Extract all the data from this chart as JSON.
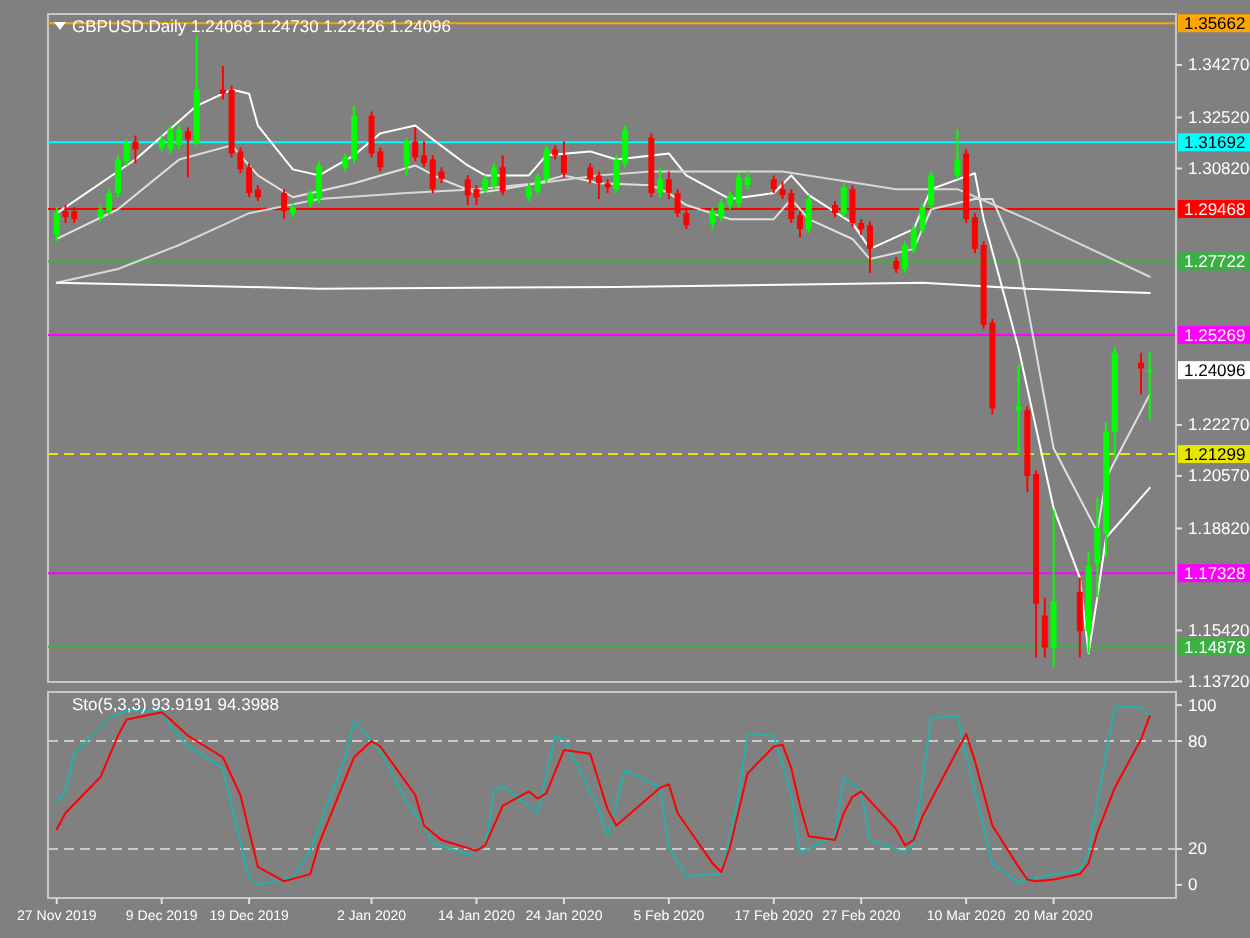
{
  "chart_data": [
    {
      "type": "candlestick",
      "title": "GBPUSD.Daily  1.24068 1.24730 1.22426 1.24096",
      "tick_labels": "y",
      "xlim": [
        "2019-11-26",
        "2020-04-03"
      ],
      "ylim": [
        1.137,
        1.3597
      ],
      "yticks": [
        {
          "value": 1.3427,
          "label": "1.34270"
        },
        {
          "value": 1.3252,
          "label": "1.32520"
        },
        {
          "value": 1.3082,
          "label": "1.30820"
        },
        {
          "value": 1.2227,
          "label": "1.22270"
        },
        {
          "value": 1.2057,
          "label": "1.20570"
        },
        {
          "value": 1.1882,
          "label": "1.18820"
        },
        {
          "value": 1.1542,
          "label": "1.15420"
        },
        {
          "value": 1.1372,
          "label": "1.13720"
        }
      ],
      "ref_lines": [
        {
          "axis": "y",
          "value": 1.35662,
          "label": "1.35662",
          "color": "#ffa500",
          "line_style": "solid"
        },
        {
          "axis": "y",
          "value": 1.31692,
          "label": "1.31692",
          "color": "#00ffff",
          "line_style": "solid"
        },
        {
          "axis": "y",
          "value": 1.29468,
          "label": "1.29468",
          "color": "#ff0000",
          "line_style": "solid"
        },
        {
          "axis": "y",
          "value": 1.27722,
          "label": "1.27722",
          "color": "#3cb043",
          "line_style": "solid"
        },
        {
          "axis": "y",
          "value": 1.25269,
          "label": "1.25269",
          "color": "#ff00ff",
          "line_style": "solid"
        },
        {
          "axis": "y",
          "value": 1.21299,
          "label": "1.21299",
          "color": "#e6e600",
          "line_style": "dashed"
        },
        {
          "axis": "y",
          "value": 1.17328,
          "label": "1.17328",
          "color": "#ff00ff",
          "line_style": "solid"
        },
        {
          "axis": "y",
          "value": 1.14878,
          "label": "1.14878",
          "color": "#3cb043",
          "line_style": "solid"
        }
      ],
      "annotations": [
        "1.24096"
      ],
      "series": [
        {
          "type": "line",
          "color": "#ffffff",
          "x": [
            "2019-11-27",
            "2019-12-06",
            "2019-12-13",
            "2019-12-17",
            "2019-12-19",
            "2019-12-20",
            "2019-12-24",
            "2019-12-27",
            "2019-12-31",
            "2020-01-03",
            "2020-01-07",
            "2020-01-09",
            "2020-01-13",
            "2020-01-15",
            "2020-01-20",
            "2020-01-22",
            "2020-01-27",
            "2020-01-30",
            "2020-02-05",
            "2020-02-07",
            "2020-02-12",
            "2020-02-17",
            "2020-02-19",
            "2020-02-21",
            "2020-02-26",
            "2020-02-28",
            "2020-03-04",
            "2020-03-06",
            "2020-03-11",
            "2020-03-12",
            "2020-03-16",
            "2020-03-18",
            "2020-03-20",
            "2020-03-23",
            "2020-03-24",
            "2020-03-25",
            "2020-03-26",
            "2020-03-31"
          ],
          "values": [
            1.2933,
            1.3112,
            1.3291,
            1.3345,
            1.3331,
            1.3225,
            1.3079,
            1.3059,
            1.3126,
            1.3199,
            1.3225,
            1.3179,
            1.3092,
            1.3059,
            1.3059,
            1.3126,
            1.3139,
            1.3112,
            1.3132,
            1.3059,
            1.298,
            1.3,
            1.3059,
            1.2993,
            1.29,
            1.2814,
            1.288,
            1.3013,
            1.3066,
            1.2913,
            1.2482,
            1.2216,
            1.195,
            1.1718,
            1.1466,
            1.1652,
            1.1851,
            1.2017
          ]
        },
        {
          "type": "line",
          "color": "#e0e0e0",
          "x": [
            "2019-11-27",
            "2019-12-04",
            "2019-12-11",
            "2019-12-17",
            "2019-12-20",
            "2019-12-24",
            "2019-12-31",
            "2020-01-07",
            "2020-01-10",
            "2020-01-14",
            "2020-01-17",
            "2020-01-21",
            "2020-01-24",
            "2020-01-28",
            "2020-02-03",
            "2020-02-05",
            "2020-02-07",
            "2020-02-12",
            "2020-02-17",
            "2020-02-19",
            "2020-02-21",
            "2020-02-26",
            "2020-02-28",
            "2020-03-04",
            "2020-03-06",
            "2020-03-11",
            "2020-03-13",
            "2020-03-16",
            "2020-03-18",
            "2020-03-20",
            "2020-03-25",
            "2020-03-26",
            "2020-03-31"
          ],
          "values": [
            1.2847,
            1.2946,
            1.3112,
            1.3159,
            1.3059,
            1.2986,
            1.3033,
            1.3092,
            1.3046,
            1.3,
            1.3013,
            1.3033,
            1.3059,
            1.3033,
            1.3026,
            1.3,
            1.296,
            1.2913,
            1.2913,
            1.298,
            1.2913,
            1.2847,
            1.278,
            1.2814,
            1.2946,
            1.298,
            1.298,
            1.278,
            1.2468,
            1.2149,
            1.1871,
            1.205,
            1.2329
          ]
        },
        {
          "type": "line",
          "color": "#d8d8d8",
          "x": [
            "2019-11-27",
            "2019-12-04",
            "2019-12-11",
            "2019-12-19",
            "2019-12-27",
            "2020-01-06",
            "2020-01-14",
            "2020-01-21",
            "2020-01-28",
            "2020-02-03",
            "2020-02-18",
            "2020-03-02",
            "2020-03-09",
            "2020-03-17",
            "2020-03-31"
          ],
          "values": [
            1.2701,
            1.2747,
            1.2827,
            1.2933,
            1.298,
            1.3,
            1.3013,
            1.3033,
            1.3059,
            1.3072,
            1.3072,
            1.3013,
            1.3013,
            1.2913,
            1.2721
          ]
        },
        {
          "type": "line",
          "color": "#ffffff",
          "x": [
            "2019-11-27",
            "2019-12-19",
            "2019-12-27",
            "2020-01-30",
            "2020-02-18",
            "2020-03-05",
            "2020-03-17",
            "2020-03-31"
          ],
          "values": [
            1.2701,
            1.2687,
            1.2681,
            1.2687,
            1.2694,
            1.2701,
            1.2681,
            1.2667
          ]
        },
        {
          "color": "#00ff00",
          "x": [
            "2019-11-27",
            "2019-12-02",
            "2019-12-03",
            "2019-12-04",
            "2019-12-05",
            "2019-12-09",
            "2019-12-10",
            "2019-12-11",
            "2019-12-13",
            "2019-12-24",
            "2019-12-26",
            "2019-12-27",
            "2019-12-30",
            "2019-12-31",
            "2020-01-06",
            "2020-01-15",
            "2020-01-16",
            "2020-01-20",
            "2020-01-21",
            "2020-01-22",
            "2020-01-30",
            "2020-01-31",
            "2020-02-04",
            "2020-02-10",
            "2020-02-11",
            "2020-02-12",
            "2020-02-13",
            "2020-02-14",
            "2020-02-21",
            "2020-02-25",
            "2020-03-03",
            "2020-03-04",
            "2020-03-05",
            "2020-03-06",
            "2020-03-09",
            "2020-03-16",
            "2020-03-20",
            "2020-03-24",
            "2020-03-25",
            "2020-03-26",
            "2020-03-27",
            "2020-03-31"
          ],
          "ohlc": [
            [
              1.286,
              1.2953,
              1.284,
              1.2933
            ],
            [
              1.292,
              1.296,
              1.2906,
              1.2946
            ],
            [
              1.294,
              1.3013,
              1.2926,
              1.3
            ],
            [
              1.3,
              1.3126,
              1.2986,
              1.3112
            ],
            [
              1.3106,
              1.3179,
              1.3092,
              1.3165
            ],
            [
              1.3152,
              1.3192,
              1.3139,
              1.3179
            ],
            [
              1.3146,
              1.3225,
              1.3132,
              1.3212
            ],
            [
              1.3159,
              1.3225,
              1.3146,
              1.3212
            ],
            [
              1.3165,
              1.3524,
              1.3159,
              1.3345
            ],
            [
              1.2933,
              1.2966,
              1.292,
              1.2953
            ],
            [
              1.2966,
              1.3013,
              1.2953,
              1.3
            ],
            [
              1.298,
              1.3106,
              1.2966,
              1.3092
            ],
            [
              1.3086,
              1.3132,
              1.3072,
              1.3119
            ],
            [
              1.3112,
              1.3291,
              1.3099,
              1.3258
            ],
            [
              1.3092,
              1.3185,
              1.3059,
              1.3172
            ],
            [
              1.3013,
              1.3059,
              1.3,
              1.3046
            ],
            [
              1.3026,
              1.3099,
              1.3013,
              1.3086
            ],
            [
              1.2986,
              1.3033,
              1.2973,
              1.3019
            ],
            [
              1.3006,
              1.3066,
              1.2993,
              1.3053
            ],
            [
              1.3046,
              1.3159,
              1.3033,
              1.3146
            ],
            [
              1.3013,
              1.3126,
              1.3,
              1.3112
            ],
            [
              1.3099,
              1.3225,
              1.3086,
              1.3212
            ],
            [
              1.3,
              1.3086,
              1.2986,
              1.3046
            ],
            [
              1.29,
              1.2953,
              1.288,
              1.294
            ],
            [
              1.292,
              1.298,
              1.2906,
              1.2966
            ],
            [
              1.296,
              1.3006,
              1.2946,
              1.2993
            ],
            [
              1.2966,
              1.3066,
              1.2953,
              1.3053
            ],
            [
              1.3026,
              1.3072,
              1.3013,
              1.3053
            ],
            [
              1.288,
              1.2993,
              1.2867,
              1.298
            ],
            [
              1.2933,
              1.3033,
              1.292,
              1.3019
            ],
            [
              1.2747,
              1.284,
              1.2734,
              1.2827
            ],
            [
              1.2814,
              1.2893,
              1.28,
              1.288
            ],
            [
              1.288,
              1.2966,
              1.2867,
              1.2953
            ],
            [
              1.296,
              1.3072,
              1.2946,
              1.3059
            ],
            [
              1.3059,
              1.3212,
              1.3046,
              1.3112
            ],
            [
              1.2276,
              1.2428,
              1.213,
              1.2289
            ],
            [
              1.1485,
              1.1944,
              1.1419,
              1.1638
            ],
            [
              1.1539,
              1.1804,
              1.1466,
              1.1758
            ],
            [
              1.1764,
              1.1984,
              1.1652,
              1.1884
            ],
            [
              1.1864,
              1.2236,
              1.1784,
              1.2203
            ],
            [
              1.2203,
              1.2488,
              1.2116,
              1.2468
            ],
            [
              1.24068,
              1.2473,
              1.22426,
              1.24096
            ]
          ]
        },
        {
          "color": "#ff0000",
          "x": [
            "2019-11-28",
            "2019-11-29",
            "2019-12-06",
            "2019-12-12",
            "2019-12-16",
            "2019-12-17",
            "2019-12-18",
            "2019-12-19",
            "2019-12-20",
            "2019-12-23",
            "2020-01-02",
            "2020-01-03",
            "2020-01-07",
            "2020-01-08",
            "2020-01-09",
            "2020-01-10",
            "2020-01-13",
            "2020-01-14",
            "2020-01-17",
            "2020-01-23",
            "2020-01-24",
            "2020-01-27",
            "2020-01-28",
            "2020-01-29",
            "2020-02-03",
            "2020-02-05",
            "2020-02-06",
            "2020-02-07",
            "2020-02-17",
            "2020-02-18",
            "2020-02-19",
            "2020-02-20",
            "2020-02-24",
            "2020-02-26",
            "2020-02-27",
            "2020-02-28",
            "2020-03-02",
            "2020-03-10",
            "2020-03-11",
            "2020-03-12",
            "2020-03-13",
            "2020-03-17",
            "2020-03-18",
            "2020-03-19",
            "2020-03-23",
            "2020-03-30"
          ],
          "ohlc": [
            [
              1.294,
              1.296,
              1.29,
              1.292
            ],
            [
              1.294,
              1.2953,
              1.29,
              1.2913
            ],
            [
              1.3172,
              1.3192,
              1.3099,
              1.3146
            ],
            [
              1.3205,
              1.3219,
              1.3053,
              1.3179
            ],
            [
              1.3345,
              1.3424,
              1.3312,
              1.3331
            ],
            [
              1.3345,
              1.3358,
              1.3119,
              1.3132
            ],
            [
              1.3139,
              1.3152,
              1.3066,
              1.3079
            ],
            [
              1.3086,
              1.3099,
              1.2986,
              1.3
            ],
            [
              1.3013,
              1.3026,
              1.2973,
              1.2986
            ],
            [
              1.3,
              1.3013,
              1.2913,
              1.294
            ],
            [
              1.3258,
              1.3272,
              1.3119,
              1.3132
            ],
            [
              1.3139,
              1.3152,
              1.3072,
              1.3086
            ],
            [
              1.3172,
              1.3219,
              1.3106,
              1.3119
            ],
            [
              1.3126,
              1.3172,
              1.3086,
              1.3099
            ],
            [
              1.3112,
              1.3126,
              1.3,
              1.3013
            ],
            [
              1.3072,
              1.3086,
              1.3033,
              1.3046
            ],
            [
              1.3046,
              1.3059,
              1.296,
              1.2993
            ],
            [
              1.3013,
              1.3026,
              1.296,
              1.2986
            ],
            [
              1.3086,
              1.3126,
              1.2993,
              1.3006
            ],
            [
              1.3146,
              1.3159,
              1.3112,
              1.3126
            ],
            [
              1.3126,
              1.3172,
              1.3053,
              1.3066
            ],
            [
              1.3086,
              1.3099,
              1.3033,
              1.3046
            ],
            [
              1.3059,
              1.3072,
              1.298,
              1.3033
            ],
            [
              1.3033,
              1.3046,
              1.3,
              1.3019
            ],
            [
              1.3185,
              1.3199,
              1.2986,
              1.3
            ],
            [
              1.3046,
              1.3072,
              1.298,
              1.3
            ],
            [
              1.3,
              1.3013,
              1.292,
              1.2933
            ],
            [
              1.2933,
              1.2946,
              1.288,
              1.2893
            ],
            [
              1.3046,
              1.3059,
              1.3,
              1.3013
            ],
            [
              1.3013,
              1.3039,
              1.298,
              1.2993
            ],
            [
              1.3,
              1.3013,
              1.29,
              1.2913
            ],
            [
              1.2926,
              1.294,
              1.2853,
              1.288
            ],
            [
              1.296,
              1.2973,
              1.292,
              1.2933
            ],
            [
              1.3013,
              1.3026,
              1.2887,
              1.29
            ],
            [
              1.29,
              1.2913,
              1.286,
              1.288
            ],
            [
              1.2893,
              1.2906,
              1.2734,
              1.2814
            ],
            [
              1.2774,
              1.2787,
              1.2734,
              1.2747
            ],
            [
              1.3132,
              1.3146,
              1.29,
              1.2913
            ],
            [
              1.292,
              1.2933,
              1.28,
              1.2814
            ],
            [
              1.2827,
              1.284,
              1.2548,
              1.2561
            ],
            [
              1.2568,
              1.2581,
              1.2262,
              1.2282
            ],
            [
              1.2276,
              1.2289,
              1.2003,
              1.2057
            ],
            [
              1.2063,
              1.2076,
              1.1452,
              1.1631
            ],
            [
              1.1592,
              1.1651,
              1.1452,
              1.1485
            ],
            [
              1.1671,
              1.1718,
              1.1452,
              1.1539
            ],
            [
              1.2435,
              1.2468,
              1.2329,
              1.2415
            ]
          ]
        }
      ]
    },
    {
      "type": "line",
      "title": "Sto(5,3,3) 93.9191 94.3988",
      "ylim": [
        -7.3,
        107.3
      ],
      "yticks": [
        0,
        20,
        80,
        100
      ],
      "xlim": [
        "2019-11-26",
        "2020-04-03"
      ],
      "xticks": [
        {
          "value": "2019-11-27",
          "label": "27 Nov 2019"
        },
        {
          "value": "2019-12-09",
          "label": "9 Dec 2019"
        },
        {
          "value": "2019-12-19",
          "label": "19 Dec 2019"
        },
        {
          "value": "2020-01-02",
          "label": "2 Jan 2020"
        },
        {
          "value": "2020-01-14",
          "label": "14 Jan 2020"
        },
        {
          "value": "2020-01-24",
          "label": "24 Jan 2020"
        },
        {
          "value": "2020-02-05",
          "label": "5 Feb 2020"
        },
        {
          "value": "2020-02-17",
          "label": "17 Feb 2020"
        },
        {
          "value": "2020-02-27",
          "label": "27 Feb 2020"
        },
        {
          "value": "2020-03-10",
          "label": "10 Mar 2020"
        },
        {
          "value": "2020-03-20",
          "label": "20 Mar 2020"
        }
      ],
      "ref_lines": [
        {
          "axis": "y",
          "value": 80,
          "color": "#c8c8c8",
          "line_style": "dashed"
        },
        {
          "axis": "y",
          "value": 20,
          "color": "#c8c8c8",
          "line_style": "dashed"
        }
      ],
      "series": [
        {
          "color": "#20b2aa",
          "x": [
            "2019-11-27",
            "2019-11-28",
            "2019-11-29",
            "2019-12-03",
            "2019-12-05",
            "2019-12-09",
            "2019-12-10",
            "2019-12-12",
            "2019-12-16",
            "2019-12-17",
            "2019-12-19",
            "2019-12-20",
            "2019-12-24",
            "2019-12-26",
            "2019-12-30",
            "2019-12-31",
            "2020-01-03",
            "2020-01-06",
            "2020-01-08",
            "2020-01-09",
            "2020-01-13",
            "2020-01-15",
            "2020-01-16",
            "2020-01-17",
            "2020-01-21",
            "2020-01-23",
            "2020-01-24",
            "2020-01-28",
            "2020-01-29",
            "2020-01-31",
            "2020-02-04",
            "2020-02-05",
            "2020-02-07",
            "2020-02-11",
            "2020-02-13",
            "2020-02-14",
            "2020-02-17",
            "2020-02-19",
            "2020-02-20",
            "2020-02-24",
            "2020-02-25",
            "2020-02-27",
            "2020-02-28",
            "2020-03-03",
            "2020-03-04",
            "2020-03-06",
            "2020-03-09",
            "2020-03-11",
            "2020-03-13",
            "2020-03-16",
            "2020-03-17",
            "2020-03-19",
            "2020-03-23",
            "2020-03-24",
            "2020-03-25",
            "2020-03-26",
            "2020-03-27",
            "2020-03-30",
            "2020-03-31"
          ],
          "values": [
            46,
            52,
            73,
            93,
            97,
            97,
            88,
            77,
            65,
            44,
            4,
            0,
            4,
            19,
            71,
            91,
            75,
            46,
            33,
            23,
            17,
            21,
            52,
            55,
            40,
            83,
            81,
            42,
            27,
            64,
            54,
            21,
            5,
            6,
            50,
            84,
            83,
            50,
            18,
            27,
            60,
            52,
            25,
            18,
            23,
            93,
            94,
            52,
            12,
            1,
            3,
            5,
            8,
            17,
            46,
            73,
            99,
            99,
            94
          ]
        },
        {
          "color": "#ff0000",
          "x": [
            "2019-11-27",
            "2019-11-28",
            "2019-12-02",
            "2019-12-04",
            "2019-12-05",
            "2019-12-09",
            "2019-12-10",
            "2019-12-12",
            "2019-12-16",
            "2019-12-18",
            "2019-12-20",
            "2019-12-23",
            "2019-12-26",
            "2019-12-27",
            "2019-12-31",
            "2020-01-02",
            "2020-01-03",
            "2020-01-07",
            "2020-01-08",
            "2020-01-10",
            "2020-01-14",
            "2020-01-15",
            "2020-01-17",
            "2020-01-20",
            "2020-01-21",
            "2020-01-22",
            "2020-01-24",
            "2020-01-27",
            "2020-01-29",
            "2020-01-30",
            "2020-02-04",
            "2020-02-05",
            "2020-02-06",
            "2020-02-10",
            "2020-02-11",
            "2020-02-12",
            "2020-02-14",
            "2020-02-17",
            "2020-02-18",
            "2020-02-19",
            "2020-02-20",
            "2020-02-21",
            "2020-02-24",
            "2020-02-25",
            "2020-02-26",
            "2020-02-27",
            "2020-03-02",
            "2020-03-03",
            "2020-03-04",
            "2020-03-05",
            "2020-03-09",
            "2020-03-10",
            "2020-03-11",
            "2020-03-13",
            "2020-03-16",
            "2020-03-17",
            "2020-03-18",
            "2020-03-20",
            "2020-03-23",
            "2020-03-24",
            "2020-03-25",
            "2020-03-27",
            "2020-03-30",
            "2020-03-31"
          ],
          "values": [
            31,
            40,
            60,
            83,
            92,
            96,
            92,
            83,
            71,
            50,
            10,
            2,
            6,
            23,
            71,
            80,
            77,
            50,
            33,
            25,
            19,
            22,
            44,
            52,
            48,
            51,
            75,
            73,
            42,
            33,
            54,
            56,
            40,
            12,
            7,
            21,
            62,
            77,
            78,
            65,
            44,
            27,
            25,
            40,
            49,
            52,
            31,
            22,
            25,
            38,
            75,
            84,
            69,
            33,
            10,
            3,
            2,
            3,
            6,
            12,
            29,
            54,
            81,
            94
          ]
        }
      ]
    }
  ]
}
